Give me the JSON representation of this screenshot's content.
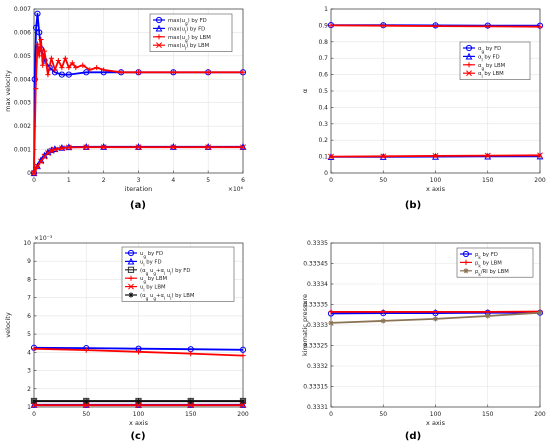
{
  "panels": [
    {
      "caption": "(a)"
    },
    {
      "caption": "(b)"
    },
    {
      "caption": "(c)"
    },
    {
      "caption": "(d)"
    }
  ],
  "chart_data": [
    {
      "type": "line",
      "xlabel": "iteration",
      "ylabel": "max velocity",
      "xlim": [
        0,
        6
      ],
      "ylim": [
        0,
        0.007
      ],
      "xticks": [
        "0",
        "1",
        "2",
        "3",
        "4",
        "5",
        "6"
      ],
      "yticks": [
        "0",
        "0.001",
        "0.002",
        "0.003",
        "0.004",
        "0.005",
        "0.006",
        "0.007"
      ],
      "x_multiplier": "×10⁶",
      "grid": true,
      "legend_position": "top-right",
      "series": [
        {
          "name": "max(u_g) by FD",
          "color": "#0000ff",
          "marker": "o",
          "x": [
            0,
            0.02,
            0.06,
            0.1,
            0.15,
            0.2,
            0.3,
            0.45,
            0.6,
            0.8,
            1.0,
            1.5,
            2.0,
            2.5,
            3,
            4,
            5,
            6
          ],
          "y": [
            0.0,
            0.004,
            0.0062,
            0.0068,
            0.006,
            0.0053,
            0.0048,
            0.0045,
            0.0043,
            0.0042,
            0.0042,
            0.0043,
            0.0043,
            0.0043,
            0.0043,
            0.0043,
            0.0043,
            0.0043
          ]
        },
        {
          "name": "max(u_l) by FD",
          "color": "#0000ff",
          "marker": "^",
          "x": [
            0,
            0.1,
            0.2,
            0.3,
            0.4,
            0.5,
            0.6,
            0.8,
            1.0,
            1.5,
            2,
            3,
            4,
            5,
            6
          ],
          "y": [
            0.0,
            0.0003,
            0.00055,
            0.00075,
            0.0009,
            0.00098,
            0.00103,
            0.00108,
            0.00111,
            0.00112,
            0.00112,
            0.00112,
            0.00112,
            0.00112,
            0.00112
          ]
        },
        {
          "name": "max(u_g) by LBM",
          "color": "#ff0000",
          "marker": "+",
          "x": [
            0,
            0.05,
            0.1,
            0.15,
            0.2,
            0.25,
            0.3,
            0.4,
            0.5,
            0.6,
            0.7,
            0.8,
            0.9,
            1.0,
            1.1,
            1.2,
            1.4,
            1.6,
            1.8,
            2.0,
            2.5,
            3,
            4,
            5,
            6
          ],
          "y": [
            0.0,
            0.0036,
            0.0055,
            0.005,
            0.0057,
            0.0046,
            0.0052,
            0.0042,
            0.0049,
            0.0044,
            0.0048,
            0.0045,
            0.0049,
            0.0045,
            0.0047,
            0.0045,
            0.0046,
            0.0044,
            0.0045,
            0.0044,
            0.0043,
            0.0043,
            0.0043,
            0.0043,
            0.0043
          ]
        },
        {
          "name": "max(u_l) by LBM",
          "color": "#ff0000",
          "marker": "x",
          "x": [
            0,
            0.1,
            0.2,
            0.3,
            0.4,
            0.5,
            0.6,
            0.8,
            1.0,
            1.5,
            2,
            3,
            4,
            5,
            6
          ],
          "y": [
            0.0,
            0.00028,
            0.0005,
            0.0007,
            0.00085,
            0.00095,
            0.001,
            0.00106,
            0.00109,
            0.0011,
            0.0011,
            0.0011,
            0.0011,
            0.0011,
            0.0011
          ]
        }
      ]
    },
    {
      "type": "line",
      "xlabel": "x axis",
      "ylabel": "α",
      "xlim": [
        0,
        200
      ],
      "ylim": [
        0,
        1
      ],
      "xticks": [
        "0",
        "50",
        "100",
        "150",
        "200"
      ],
      "yticks": [
        "0",
        "0.1",
        "0.2",
        "0.3",
        "0.4",
        "0.5",
        "0.6",
        "0.7",
        "0.8",
        "0.9",
        "1"
      ],
      "grid": true,
      "legend_position": "middle-right",
      "series": [
        {
          "name": "α_g by FD",
          "color": "#0000ff",
          "marker": "o",
          "x": [
            0,
            50,
            100,
            150,
            200
          ],
          "y": [
            0.902,
            0.901,
            0.9,
            0.899,
            0.898
          ]
        },
        {
          "name": "α_l by FD",
          "color": "#0000ff",
          "marker": "^",
          "x": [
            0,
            50,
            100,
            150,
            200
          ],
          "y": [
            0.098,
            0.099,
            0.1,
            0.101,
            0.102
          ]
        },
        {
          "name": "α_g by LBM",
          "color": "#ff0000",
          "marker": "+",
          "x": [
            0,
            50,
            100,
            150,
            200
          ],
          "y": [
            0.9,
            0.898,
            0.896,
            0.894,
            0.892
          ]
        },
        {
          "name": "α_l by LBM",
          "color": "#ff0000",
          "marker": "x",
          "x": [
            0,
            50,
            100,
            150,
            200
          ],
          "y": [
            0.1,
            0.102,
            0.104,
            0.106,
            0.108
          ]
        }
      ]
    },
    {
      "type": "line",
      "xlabel": "x axis",
      "ylabel": "velocity",
      "xlim": [
        0,
        200
      ],
      "ylim": [
        1,
        10
      ],
      "xticks": [
        "0",
        "50",
        "100",
        "150",
        "200"
      ],
      "yticks": [
        "1",
        "2",
        "3",
        "4",
        "5",
        "6",
        "7",
        "8",
        "9",
        "10"
      ],
      "y_multiplier": "×10⁻³",
      "grid": true,
      "legend_position": "top-right",
      "series": [
        {
          "name": "u_g by FD",
          "color": "#0000ff",
          "marker": "o",
          "x": [
            0,
            50,
            100,
            150,
            200
          ],
          "y": [
            4.25,
            4.23,
            4.2,
            4.17,
            4.14
          ]
        },
        {
          "name": "u_l by FD",
          "color": "#0000ff",
          "marker": "^",
          "x": [
            0,
            50,
            100,
            150,
            200
          ],
          "y": [
            1.12,
            1.12,
            1.12,
            1.12,
            1.12
          ]
        },
        {
          "name": "(α_g u_g+α_l u_l) by FD",
          "color": "#333333",
          "marker": "s",
          "x": [
            0,
            50,
            100,
            150,
            200
          ],
          "y": [
            1.33,
            1.33,
            1.33,
            1.33,
            1.33
          ]
        },
        {
          "name": "u_g by LBM",
          "color": "#ff0000",
          "marker": "+",
          "x": [
            0,
            50,
            100,
            150,
            200
          ],
          "y": [
            4.2,
            4.12,
            4.03,
            3.93,
            3.82
          ]
        },
        {
          "name": "u_l by LBM",
          "color": "#ff0000",
          "marker": "x",
          "x": [
            0,
            50,
            100,
            150,
            200
          ],
          "y": [
            1.1,
            1.1,
            1.1,
            1.1,
            1.1
          ]
        },
        {
          "name": "(α_g u_g+α_l u_l) by LBM",
          "color": "#111111",
          "marker": "*",
          "x": [
            0,
            50,
            100,
            150,
            200
          ],
          "y": [
            1.32,
            1.32,
            1.32,
            1.32,
            1.32
          ]
        }
      ]
    },
    {
      "type": "line",
      "xlabel": "x axis",
      "ylabel": "kinematic pressure",
      "xlim": [
        0,
        200
      ],
      "ylim": [
        0.3331,
        0.3335
      ],
      "xticks": [
        "0",
        "50",
        "100",
        "150",
        "200"
      ],
      "yticks": [
        "0.3331",
        "0.33315",
        "0.3332",
        "0.33325",
        "0.3333",
        "0.33335",
        "0.3334",
        "0.33345",
        "0.3335"
      ],
      "grid": true,
      "legend_position": "top-right",
      "series": [
        {
          "name": "p_k by FD",
          "color": "#0000ff",
          "marker": "o",
          "x": [
            0,
            50,
            100,
            150,
            200
          ],
          "y": [
            0.333328,
            0.333329,
            0.333329,
            0.33333,
            0.33333
          ]
        },
        {
          "name": "p_k by LBM",
          "color": "#ff0000",
          "marker": "+",
          "x": [
            0,
            50,
            100,
            150,
            200
          ],
          "y": [
            0.333332,
            0.333332,
            0.333332,
            0.333332,
            0.333333
          ]
        },
        {
          "name": "p_k/Rl by LBM",
          "color": "#8b7355",
          "marker": "*",
          "x": [
            0,
            50,
            100,
            150,
            200
          ],
          "y": [
            0.333305,
            0.33331,
            0.333315,
            0.333322,
            0.33333
          ]
        }
      ]
    }
  ]
}
